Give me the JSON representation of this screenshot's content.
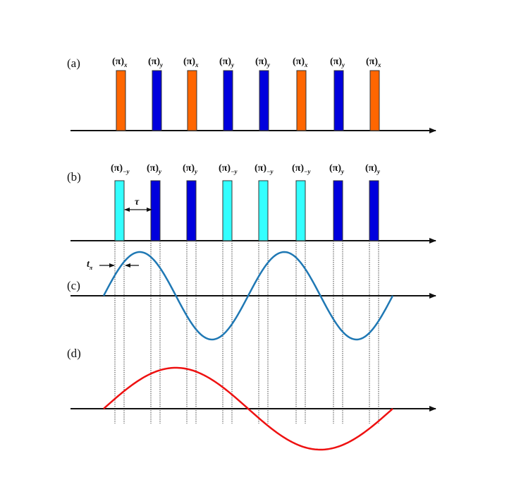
{
  "panels": {
    "a": "(a)",
    "b": "(b)",
    "c": "(c)",
    "d": "(d)"
  },
  "pulse_symbol": "(π)",
  "sequence_a": {
    "phases": [
      "x",
      "y",
      "x",
      "y",
      "y",
      "x",
      "y",
      "x"
    ]
  },
  "sequence_b": {
    "phases": [
      "−y",
      "y",
      "y",
      "−y",
      "−y",
      "−y",
      "y",
      "y"
    ]
  },
  "annotations": {
    "tau": "τ",
    "t_main": "t",
    "t_sub": "π"
  },
  "colors": {
    "x": "#ff6600",
    "y": "#0000dd",
    "-y": "#33ffff",
    "pulse_edge": "#333333",
    "axis": "#111111",
    "curve_c": "#1f78b4",
    "curve_d": "#ee1111",
    "guide": "#444444"
  }
}
